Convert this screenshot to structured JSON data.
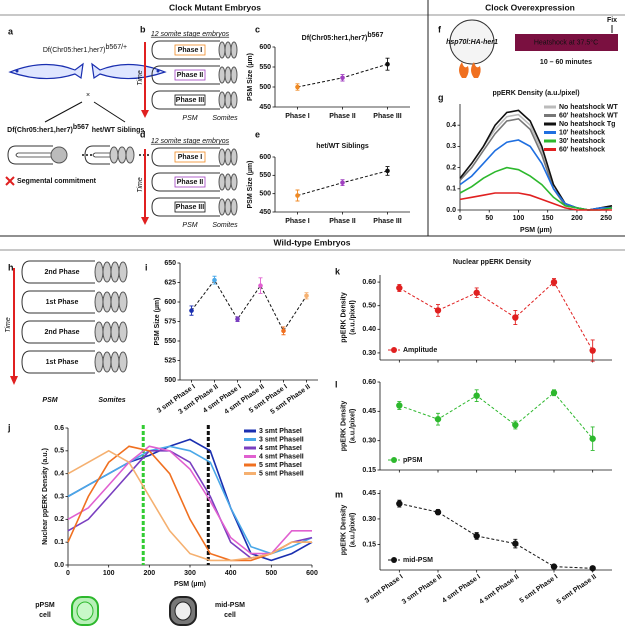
{
  "headers": {
    "clock_mutant": "Clock Mutant Embryos",
    "clock_overexpression": "Clock Overexpression",
    "wild_type": "Wild-type Embryos"
  },
  "panel_labels": [
    "a",
    "b",
    "c",
    "d",
    "e",
    "f",
    "g",
    "h",
    "i",
    "j",
    "k",
    "l",
    "m"
  ],
  "panel_a": {
    "cross_label": "Df(Chr05:her1,her7)",
    "cross_label_sup": "b567/+",
    "cross": "×",
    "mutant": "Df(Chr05:her1,her7)",
    "mutant_sup": "b567",
    "siblings": "het/WT Siblings",
    "note": "Segmental commitment"
  },
  "panel_b": {
    "title": "12 somite stage embryos",
    "time": "Time",
    "phases": [
      "Phase I",
      "Phase II",
      "Phase III"
    ],
    "psm": "PSM",
    "somites": "Somites"
  },
  "panel_d": {
    "title": "12 somite stage embryos",
    "time": "Time",
    "phases": [
      "Phase I",
      "Phase II",
      "Phase III"
    ],
    "psm": "PSM",
    "somites": "Somites"
  },
  "panel_f": {
    "construct": "hsp70l:HA-her1",
    "treatment": "Heatshock at 37.5°C",
    "fix": "Fix",
    "duration": "10 – 60 minutes"
  },
  "panel_h": {
    "phases": [
      "2nd Phase",
      "1st Phase",
      "2nd Phase",
      "1st Phase"
    ],
    "time": "Time",
    "psm": "PSM",
    "somites": "Somites"
  },
  "panel_j_cells": {
    "ppsm": "pPSM",
    "ppsm_cell": "cell",
    "mid": "mid-PSM",
    "mid_cell": "cell"
  },
  "panel_klm_title": "Nuclear ppERK Density",
  "chart_data": [
    {
      "type": "line",
      "title": "Df(Chr05:her1,her7)",
      "title_sup": "b567",
      "ylabel": "PSM Size (µm)",
      "categories": [
        "Phase I",
        "Phase II",
        "Phase III"
      ],
      "ylim": [
        450,
        600
      ],
      "yticks": [
        450,
        500,
        550,
        600
      ],
      "line_style": "dashed",
      "markers": true,
      "series": [
        {
          "color": "#111111",
          "point_colors": [
            "#f08a24",
            "#a040c0",
            "#111111"
          ],
          "values": [
            500,
            523,
            557
          ],
          "errors": [
            8,
            8,
            15
          ]
        }
      ]
    },
    {
      "type": "line",
      "title": "het/WT Siblings",
      "ylabel": "PSM Size (µm)",
      "categories": [
        "Phase I",
        "Phase II",
        "Phase III"
      ],
      "ylim": [
        450,
        600
      ],
      "yticks": [
        450,
        500,
        550,
        600
      ],
      "line_style": "dashed",
      "markers": true,
      "series": [
        {
          "color": "#111111",
          "point_colors": [
            "#f08a24",
            "#a040c0",
            "#111111"
          ],
          "values": [
            495,
            530,
            562
          ],
          "errors": [
            15,
            8,
            12
          ]
        }
      ]
    },
    {
      "type": "line",
      "title": "ppERK Density (a.u./pixel)",
      "xlabel": "PSM (µm)",
      "x": [
        0,
        20,
        40,
        60,
        80,
        100,
        120,
        140,
        160,
        180,
        200,
        220,
        240,
        260
      ],
      "xlim": [
        0,
        260
      ],
      "xticks": [
        0,
        50,
        100,
        150,
        200,
        250
      ],
      "ylim": [
        0,
        0.5
      ],
      "yticks": [
        {
          "value": 0,
          "label": "0.0"
        },
        0.1,
        0.2,
        0.3,
        0.4
      ],
      "legend": "upper right",
      "series": [
        {
          "name": "No heatshock WT",
          "color": "#bbbbbb",
          "values": [
            0.15,
            0.22,
            0.3,
            0.38,
            0.44,
            0.45,
            0.4,
            0.28,
            0.1,
            0.02,
            0.01,
            0,
            0.01,
            0.02
          ]
        },
        {
          "name": "60' heatshock WT",
          "color": "#777777",
          "values": [
            0.14,
            0.2,
            0.28,
            0.36,
            0.42,
            0.43,
            0.38,
            0.26,
            0.1,
            0.02,
            0.01,
            0,
            0.01,
            0.01
          ]
        },
        {
          "name": "No heatshock Tg",
          "color": "#111111",
          "values": [
            0.15,
            0.22,
            0.3,
            0.4,
            0.46,
            0.47,
            0.42,
            0.3,
            0.12,
            0.03,
            0.01,
            0,
            0.01,
            0.02
          ]
        },
        {
          "name": "10' heatshock",
          "color": "#1f6fe0",
          "values": [
            0.12,
            0.16,
            0.22,
            0.28,
            0.32,
            0.33,
            0.3,
            0.22,
            0.1,
            0.03,
            0.01,
            0,
            0.01,
            0.01
          ]
        },
        {
          "name": "30' heatshock",
          "color": "#2db82d",
          "values": [
            0.08,
            0.11,
            0.15,
            0.18,
            0.2,
            0.19,
            0.16,
            0.12,
            0.06,
            0.02,
            0.01,
            0,
            0,
            0.01
          ]
        },
        {
          "name": "60' heatshock",
          "color": "#e02020",
          "values": [
            0.05,
            0.06,
            0.07,
            0.08,
            0.08,
            0.08,
            0.07,
            0.05,
            0.03,
            0.01,
            0,
            0,
            0,
            0
          ]
        }
      ]
    },
    {
      "type": "line",
      "ylabel": "PSM Size (µm)",
      "categories": [
        "3 smt Phase I",
        "3 smt Phase II",
        "4 smt Phase I",
        "4 smt Phase II",
        "5 smt Phase I",
        "5 smt Phase II"
      ],
      "ylim": [
        500,
        650
      ],
      "yticks": [
        500,
        525,
        550,
        575,
        600,
        625,
        650
      ],
      "line_style": "dashed",
      "markers": true,
      "series": [
        {
          "color": "#111111",
          "point_colors": [
            "#1a2fb0",
            "#4aa8e8",
            "#7a3fc0",
            "#e060d0",
            "#f07020",
            "#f5b070"
          ],
          "values": [
            589,
            628,
            578,
            621,
            563,
            608
          ],
          "errors": [
            6,
            5,
            3,
            10,
            5,
            4
          ]
        }
      ]
    },
    {
      "type": "line",
      "ylabel": "Nuclear ppERK Density (a.u.)",
      "xlabel": "PSM (µm)",
      "x": [
        0,
        50,
        100,
        150,
        200,
        250,
        300,
        350,
        400,
        450,
        500,
        550,
        600
      ],
      "xlim": [
        0,
        600
      ],
      "xticks": [
        0,
        100,
        200,
        300,
        400,
        500,
        600
      ],
      "ylim": [
        0,
        0.6
      ],
      "yticks": [
        {
          "value": 0,
          "label": "0.0"
        },
        0.1,
        0.2,
        0.3,
        0.4,
        0.5,
        0.6
      ],
      "legend": "upper right",
      "reference_lines": [
        {
          "x": 185,
          "color": "#33cc33"
        },
        {
          "x": 345,
          "color": "#111111"
        }
      ],
      "series": [
        {
          "name": "3 smt PhaseI",
          "color": "#1a2fb0",
          "values": [
            0.3,
            0.35,
            0.4,
            0.45,
            0.48,
            0.52,
            0.55,
            0.5,
            0.25,
            0.05,
            0.02,
            0.05,
            0.1
          ]
        },
        {
          "name": "3 smt PhaseII",
          "color": "#4aa8e8",
          "values": [
            0.3,
            0.35,
            0.4,
            0.45,
            0.5,
            0.52,
            0.5,
            0.45,
            0.25,
            0.08,
            0.05,
            0.08,
            0.12
          ]
        },
        {
          "name": "4 smt PhaseI",
          "color": "#7a3fc0",
          "values": [
            0.15,
            0.2,
            0.3,
            0.4,
            0.5,
            0.5,
            0.45,
            0.3,
            0.1,
            0.03,
            0.05,
            0.1,
            0.12
          ]
        },
        {
          "name": "4 smt PhaseII",
          "color": "#e060d0",
          "values": [
            0.2,
            0.25,
            0.35,
            0.45,
            0.52,
            0.5,
            0.42,
            0.28,
            0.12,
            0.05,
            0.05,
            0.15,
            0.15
          ]
        },
        {
          "name": "5 smt PhaseI",
          "color": "#f07020",
          "values": [
            0.1,
            0.3,
            0.45,
            0.52,
            0.5,
            0.4,
            0.2,
            0.05,
            0.02,
            0.02,
            0.05,
            0.1,
            0.1
          ]
        },
        {
          "name": "5 smt PhaseII",
          "color": "#f5b070",
          "values": [
            0.4,
            0.45,
            0.5,
            0.45,
            0.3,
            0.15,
            0.05,
            0.02,
            0.02,
            0.03,
            0.05,
            0.1,
            0.1
          ]
        }
      ]
    },
    {
      "type": "line",
      "ylabel": [
        "ppERK Density",
        "(a.u./pixel)"
      ],
      "categories": [
        "3 smt Phase I",
        "3 smt Phase II",
        "4 smt Phase I",
        "4 smt Phase II",
        "5 smt Phase I",
        "5 smt Phase II"
      ],
      "ylim": [
        0.27,
        0.63
      ],
      "yticks": [
        {
          "value": 0.3,
          "label": "0.30"
        },
        {
          "value": 0.4,
          "label": "0.40"
        },
        {
          "value": 0.5,
          "label": "0.50"
        },
        {
          "value": 0.6,
          "label": "0.60"
        }
      ],
      "line_style": "dashed",
      "markers": true,
      "legend": "lower left",
      "hide_categories": true,
      "series": [
        {
          "name": "Amplitude",
          "color": "#e02020",
          "values": [
            0.575,
            0.48,
            0.555,
            0.45,
            0.6,
            0.31
          ],
          "errors": [
            0.015,
            0.025,
            0.02,
            0.03,
            0.015,
            0.045
          ]
        }
      ]
    },
    {
      "type": "line",
      "ylabel": [
        "ppERK Density",
        "(a.u./pixel)"
      ],
      "categories": [
        "3 smt Phase I",
        "3 smt Phase II",
        "4 smt Phase I",
        "4 smt Phase II",
        "5 smt Phase I",
        "5 smt Phase II"
      ],
      "ylim": [
        0.15,
        0.6
      ],
      "yticks": [
        0.15,
        {
          "value": 0.3,
          "label": "0.30"
        },
        0.45,
        {
          "value": 0.6,
          "label": "0.60"
        }
      ],
      "line_style": "dashed",
      "markers": true,
      "legend": "lower left",
      "hide_categories": true,
      "series": [
        {
          "name": "pPSM",
          "color": "#2db82d",
          "values": [
            0.48,
            0.41,
            0.53,
            0.38,
            0.545,
            0.31
          ],
          "errors": [
            0.02,
            0.03,
            0.03,
            0.02,
            0.015,
            0.06
          ]
        }
      ]
    },
    {
      "type": "line",
      "ylabel": [
        "ppERK Density",
        "(a.u./pixel)"
      ],
      "categories": [
        "3 smt Phase I",
        "3 smt Phase II",
        "4 smt Phase I",
        "4 smt Phase II",
        "5 smt Phase I",
        "5 smt Phase II"
      ],
      "ylim": [
        0,
        0.47
      ],
      "yticks": [
        0.15,
        {
          "value": 0.3,
          "label": "0.30"
        },
        0.45
      ],
      "line_style": "dashed",
      "markers": true,
      "legend": "lower left",
      "series": [
        {
          "name": "mid-PSM",
          "color": "#111111",
          "values": [
            0.39,
            0.34,
            0.2,
            0.155,
            0.02,
            0.01
          ],
          "errors": [
            0.02,
            0.015,
            0.02,
            0.025,
            0.005,
            0.005
          ]
        }
      ]
    }
  ]
}
